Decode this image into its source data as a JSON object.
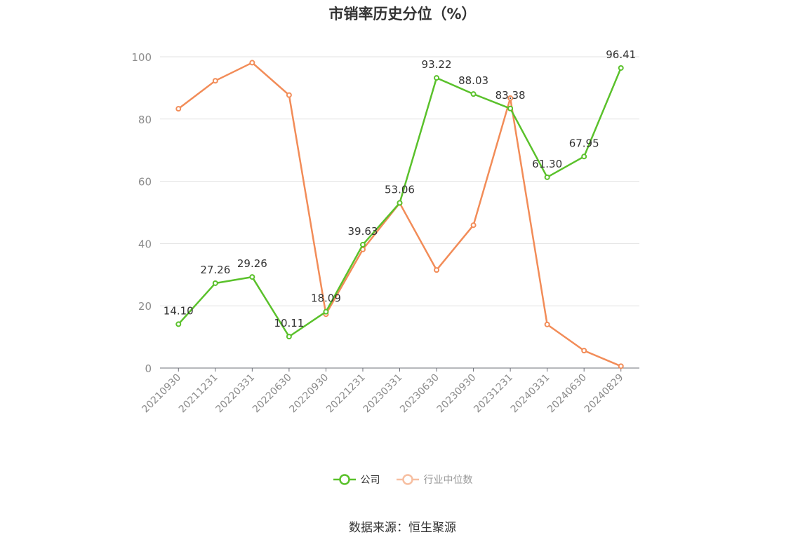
{
  "chart_data": {
    "type": "line",
    "title": "市销率历史分位（%）",
    "categories": [
      "20210930",
      "20211231",
      "20220331",
      "20220630",
      "20220930",
      "20221231",
      "20230331",
      "20230630",
      "20230930",
      "20231231",
      "20240331",
      "20240630",
      "20240829"
    ],
    "series": [
      {
        "name": "公司",
        "color": "#5ac12b",
        "values": [
          14.1,
          27.26,
          29.26,
          10.11,
          18.09,
          39.63,
          53.06,
          93.22,
          88.03,
          83.38,
          61.3,
          67.95,
          96.41
        ],
        "labels": [
          "14.10",
          "27.26",
          "29.26",
          "10.11",
          "18.09",
          "39.63",
          "53.06",
          "93.22",
          "88.03",
          "83.38",
          "61.30",
          "67.95",
          "96.41"
        ]
      },
      {
        "name": "行业中位数",
        "color": "#f28c58",
        "values": [
          83.3,
          92.3,
          98.1,
          87.7,
          17.3,
          38.1,
          53.0,
          31.5,
          45.9,
          86.7,
          14.0,
          5.6,
          0.6
        ]
      }
    ],
    "yticks": [
      "0",
      "20",
      "40",
      "60",
      "80",
      "100"
    ],
    "ylim": [
      0,
      100
    ],
    "grid": true,
    "legend_position": "bottom-center"
  },
  "legend": {
    "company": "公司",
    "industry": "行业中位数"
  },
  "source": "数据来源：恒生聚源"
}
